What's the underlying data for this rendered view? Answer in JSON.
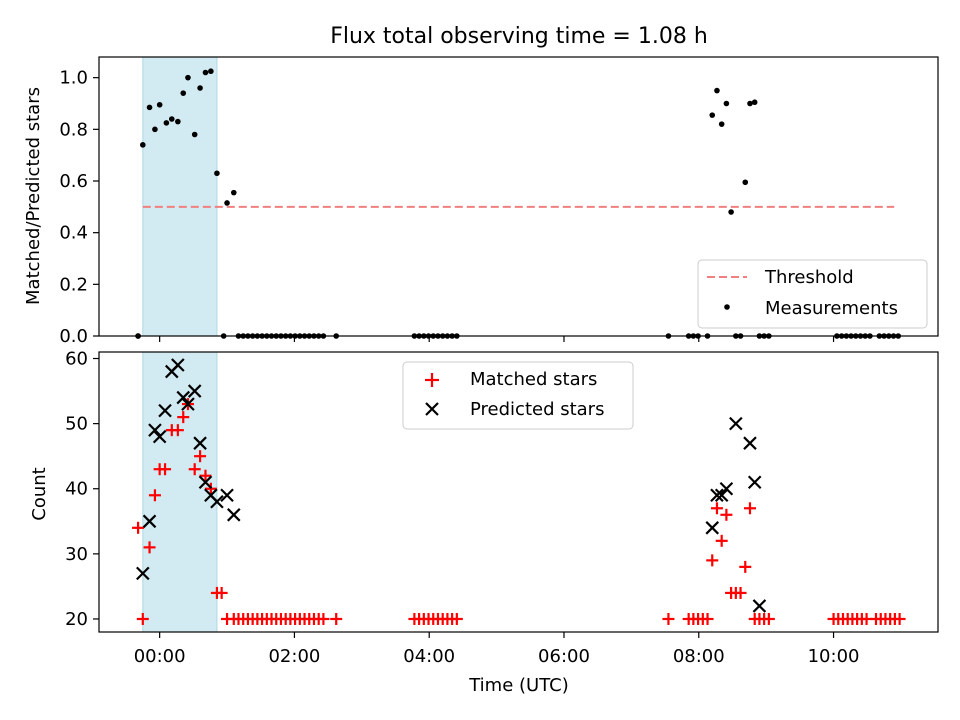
{
  "title": "Flux total observing time = 1.08 h",
  "chart_data": [
    {
      "type": "scatter",
      "ylabel": "Matched/Predicted stars",
      "xlim_hours": [
        -0.9,
        11.55
      ],
      "ylim": [
        0,
        1.08
      ],
      "yticks": [
        0.0,
        0.2,
        0.4,
        0.6,
        0.8,
        1.0
      ],
      "ytick_labels": [
        "0.0",
        "0.2",
        "0.4",
        "0.6",
        "0.8",
        "1.0"
      ],
      "shaded_span_hours": [
        -0.25,
        0.85
      ],
      "shaded_color": "#add8e6",
      "threshold": {
        "name": "Threshold",
        "y": 0.5,
        "x_range_hours": [
          -0.25,
          10.9
        ],
        "color": "#f08080"
      },
      "legend": {
        "position": "lower-right",
        "entries": [
          "Threshold",
          "Measurements"
        ]
      },
      "series": [
        {
          "name": "Measurements",
          "color": "#000000",
          "marker": "dot",
          "x_hours": [
            -0.32,
            -0.25,
            -0.15,
            -0.07,
            0.0,
            0.1,
            0.18,
            0.27,
            0.35,
            0.42,
            0.52,
            0.6,
            0.68,
            0.76,
            0.85,
            1.0,
            1.1,
            -0.32,
            0.95,
            1.17,
            1.24,
            1.31,
            1.38,
            1.45,
            1.52,
            1.59,
            1.66,
            1.73,
            1.8,
            1.87,
            1.94,
            2.01,
            2.08,
            2.15,
            2.22,
            2.29,
            2.36,
            2.43,
            2.62,
            3.78,
            3.85,
            3.92,
            3.99,
            4.06,
            4.13,
            4.2,
            4.27,
            4.34,
            4.41,
            7.55,
            7.85,
            7.92,
            7.99,
            8.13,
            8.2,
            8.27,
            8.34,
            8.41,
            8.48,
            8.55,
            8.62,
            8.69,
            8.76,
            8.83,
            8.9,
            8.97,
            9.04,
            10.05,
            10.12,
            10.19,
            10.26,
            10.33,
            10.4,
            10.47,
            10.54,
            10.68,
            10.75,
            10.82,
            10.89,
            10.96
          ],
          "y": [
            0.0,
            0.74,
            0.885,
            0.8,
            0.895,
            0.825,
            0.84,
            0.83,
            0.94,
            1.0,
            0.78,
            0.96,
            1.02,
            1.025,
            0.63,
            0.515,
            0.555,
            0.0,
            0.0,
            0.0,
            0.0,
            0.0,
            0.0,
            0.0,
            0.0,
            0.0,
            0.0,
            0.0,
            0.0,
            0.0,
            0.0,
            0.0,
            0.0,
            0.0,
            0.0,
            0.0,
            0.0,
            0.0,
            0.0,
            0.0,
            0.0,
            0.0,
            0.0,
            0.0,
            0.0,
            0.0,
            0.0,
            0.0,
            0.0,
            0.0,
            0.0,
            0.0,
            0.0,
            0.0,
            0.855,
            0.95,
            0.82,
            0.9,
            0.48,
            0.0,
            0.0,
            0.595,
            0.9,
            0.905,
            0.0,
            0.0,
            0.0,
            0.0,
            0.0,
            0.0,
            0.0,
            0.0,
            0.0,
            0.0,
            0.0,
            0.0,
            0.0,
            0.0,
            0.0,
            0.0
          ]
        }
      ]
    },
    {
      "type": "scatter",
      "xlabel": "Time (UTC)",
      "ylabel": "Count",
      "xlim_hours": [
        -0.9,
        11.55
      ],
      "ylim": [
        18,
        61
      ],
      "yticks": [
        20,
        30,
        40,
        50,
        60
      ],
      "ytick_labels": [
        "20",
        "30",
        "40",
        "50",
        "60"
      ],
      "xticks_hours": [
        0,
        2,
        4,
        6,
        8,
        10
      ],
      "xtick_labels": [
        "00:00",
        "02:00",
        "04:00",
        "06:00",
        "08:00",
        "10:00"
      ],
      "shaded_span_hours": [
        -0.25,
        0.85
      ],
      "shaded_color": "#add8e6",
      "legend": {
        "position": "top-center",
        "entries": [
          "Matched stars",
          "Predicted stars"
        ]
      },
      "series": [
        {
          "name": "Matched stars",
          "color": "#ff0000",
          "marker": "plus",
          "x_hours": [
            -0.32,
            -0.25,
            -0.15,
            -0.07,
            0.0,
            0.08,
            0.18,
            0.27,
            0.35,
            0.42,
            0.52,
            0.6,
            0.68,
            0.76,
            0.85,
            0.92,
            1.0,
            1.1,
            1.17,
            1.24,
            1.31,
            1.38,
            1.45,
            1.52,
            1.59,
            1.66,
            1.73,
            1.8,
            1.87,
            1.94,
            2.01,
            2.08,
            2.15,
            2.22,
            2.29,
            2.36,
            2.43,
            2.62,
            3.78,
            3.85,
            3.92,
            3.99,
            4.06,
            4.13,
            4.2,
            4.27,
            4.34,
            4.41,
            7.55,
            7.85,
            7.92,
            7.99,
            8.06,
            8.13,
            8.2,
            8.27,
            8.34,
            8.41,
            8.48,
            8.55,
            8.62,
            8.69,
            8.76,
            8.83,
            8.9,
            8.97,
            9.04,
            10.0,
            10.07,
            10.14,
            10.21,
            10.28,
            10.35,
            10.42,
            10.49,
            10.63,
            10.7,
            10.77,
            10.84,
            10.91,
            10.98
          ],
          "y": [
            34,
            20,
            31,
            39,
            43,
            43,
            49,
            49,
            51,
            53,
            43,
            45,
            42,
            40,
            24,
            24,
            20,
            20,
            20,
            20,
            20,
            20,
            20,
            20,
            20,
            20,
            20,
            20,
            20,
            20,
            20,
            20,
            20,
            20,
            20,
            20,
            20,
            20,
            20,
            20,
            20,
            20,
            20,
            20,
            20,
            20,
            20,
            20,
            20,
            20,
            20,
            20,
            20,
            20,
            29,
            37,
            32,
            36,
            24,
            24,
            24,
            28,
            37,
            20,
            20,
            20,
            20,
            20,
            20,
            20,
            20,
            20,
            20,
            20,
            20,
            20,
            20,
            20,
            20,
            20,
            20
          ]
        },
        {
          "name": "Predicted stars",
          "color": "#000000",
          "marker": "x",
          "x_hours": [
            -0.25,
            -0.15,
            -0.07,
            0.0,
            0.08,
            0.18,
            0.27,
            0.35,
            0.42,
            0.52,
            0.6,
            0.68,
            0.76,
            0.85,
            1.0,
            1.1,
            8.2,
            8.27,
            8.34,
            8.41,
            8.55,
            8.76,
            8.83,
            8.9
          ],
          "y": [
            27,
            35,
            49,
            48,
            52,
            58,
            59,
            54,
            53,
            55,
            47,
            41,
            39,
            38,
            39,
            36,
            34,
            39,
            39,
            40,
            50,
            47,
            41,
            22
          ]
        }
      ]
    }
  ]
}
